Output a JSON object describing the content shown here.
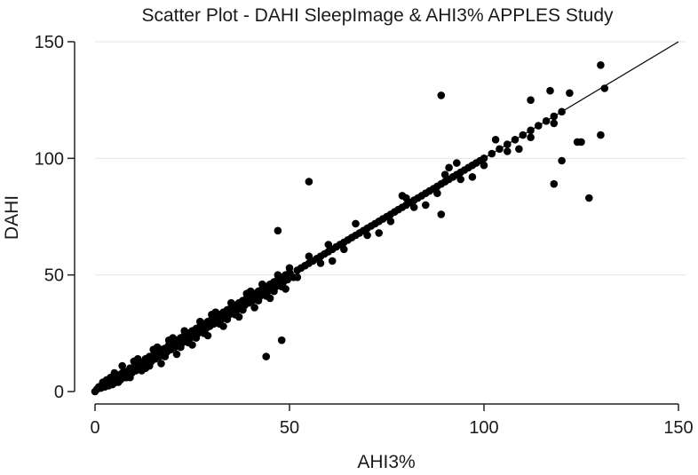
{
  "chart_data": {
    "type": "scatter",
    "title": "Scatter Plot - DAHI SleepImage & AHI3% APPLES Study",
    "xlabel": "AHI3%",
    "ylabel": "DAHI",
    "xlim": [
      0,
      150
    ],
    "ylim": [
      0,
      150
    ],
    "xticks": [
      0,
      50,
      100,
      150
    ],
    "yticks": [
      0,
      50,
      100,
      150
    ],
    "grid": "horizontal",
    "legend": "none",
    "fit_line": {
      "x": [
        0,
        150
      ],
      "y": [
        0,
        150
      ]
    },
    "colors": {
      "points": "#000000",
      "fit_line": "#111111",
      "grid": "#e3e3e3",
      "axis": "#222222",
      "background": "#ffffff"
    },
    "series": [
      {
        "x": [
          0,
          0.5,
          1,
          1.5,
          2,
          2.5,
          3,
          3.5,
          4,
          4.5,
          5,
          5.5,
          6,
          6.5,
          7,
          7.5,
          8,
          8.5,
          9,
          9.5,
          10,
          10.5,
          11,
          11.5,
          12,
          12.5,
          13,
          13.5,
          14,
          14.5,
          15,
          15.5,
          16,
          16.5,
          17,
          17.5,
          18,
          18.5,
          19,
          19.5,
          20,
          20.5,
          21,
          21.5,
          22,
          22.5,
          23,
          23.5,
          24,
          24.5,
          25,
          25.5,
          26,
          26.5,
          27,
          27.5,
          28,
          28.5,
          29,
          29.5,
          30,
          30.5,
          31,
          31.5,
          32,
          32.5,
          33,
          33.5,
          34,
          34.5,
          35,
          35.5,
          36,
          36.5,
          37,
          37.5,
          38,
          38.5,
          39,
          39.5,
          40,
          40.5,
          41,
          41.5,
          42,
          42.5,
          43,
          43.5,
          44,
          44.5,
          45,
          45.5,
          46,
          46.5,
          47,
          47.5,
          48,
          48.5,
          49,
          49.5,
          50,
          51,
          52,
          53,
          54,
          55,
          56,
          57,
          58,
          59,
          60,
          61,
          62,
          63,
          64,
          65,
          66,
          67,
          68,
          69,
          70,
          71,
          72,
          73,
          74,
          75,
          76,
          77,
          78,
          79,
          80,
          81,
          82,
          83,
          84,
          85,
          86,
          87,
          88,
          89,
          90,
          91,
          92,
          93,
          94,
          95,
          96,
          97,
          98,
          99,
          100,
          102,
          104,
          106,
          108,
          110,
          112,
          114,
          116,
          118,
          120,
          3,
          5,
          7,
          9,
          11,
          13,
          15,
          17,
          19,
          21,
          23,
          25,
          27,
          29,
          31,
          33,
          35,
          37,
          39,
          41,
          43,
          45,
          47,
          49,
          55,
          61,
          67,
          73,
          79,
          85,
          91,
          97,
          103,
          109,
          2,
          6,
          8,
          12,
          14,
          18,
          22,
          24,
          26,
          28,
          32,
          34,
          36,
          38,
          42,
          44,
          46,
          48,
          52,
          58,
          64,
          70,
          76,
          82,
          88,
          94,
          100,
          106,
          112,
          118,
          4,
          10,
          16,
          20,
          30,
          40,
          50,
          60,
          80,
          90,
          55,
          48,
          44,
          47,
          89,
          112,
          118,
          122,
          124,
          127,
          130,
          131,
          130,
          117,
          125,
          120,
          89,
          93
        ],
        "y": [
          0,
          1,
          2,
          1.5,
          3,
          2,
          3.5,
          2.5,
          5,
          3,
          5.5,
          4,
          7,
          5,
          8,
          6,
          8.5,
          7,
          10,
          8,
          10.5,
          9,
          12,
          10,
          12.5,
          11,
          14,
          12,
          15,
          13,
          15.5,
          14,
          17,
          15,
          18,
          16,
          18.5,
          17,
          20,
          18,
          21,
          19,
          22,
          20,
          23,
          21,
          24,
          22,
          25,
          23,
          26,
          24,
          27,
          25,
          28,
          26,
          29,
          27,
          30,
          28,
          31,
          29,
          32,
          30,
          33,
          31,
          34,
          32,
          35,
          33,
          36,
          34,
          37,
          35,
          38,
          36,
          39,
          37,
          40,
          38,
          41,
          39,
          42,
          40,
          43,
          41,
          44,
          42,
          45,
          43,
          46,
          44,
          47,
          45,
          48,
          46,
          49,
          47,
          50,
          48,
          51,
          49,
          52,
          53,
          54,
          55,
          56,
          57,
          58,
          59,
          60,
          61,
          62,
          63,
          64,
          65,
          66,
          67,
          68,
          69,
          70,
          71,
          72,
          73,
          74,
          75,
          76,
          77,
          78,
          79,
          80,
          81,
          82,
          83,
          84,
          85,
          86,
          87,
          88,
          89,
          90,
          91,
          92,
          93,
          94,
          95,
          96,
          97,
          98,
          99,
          100,
          102,
          104,
          106,
          108,
          110,
          112,
          114,
          116,
          118,
          120,
          5,
          8,
          11,
          6,
          14,
          10,
          18,
          12,
          22,
          16,
          26,
          20,
          30,
          24,
          34,
          28,
          38,
          32,
          42,
          36,
          46,
          40,
          50,
          44,
          58,
          56,
          72,
          68,
          84,
          80,
          96,
          92,
          108,
          104,
          4,
          4,
          6,
          9,
          11,
          15,
          19,
          21,
          23,
          25,
          29,
          31,
          33,
          35,
          39,
          41,
          43,
          45,
          49,
          55,
          61,
          67,
          73,
          79,
          85,
          91,
          97,
          103,
          109,
          115,
          6,
          13,
          19,
          23,
          33,
          43,
          53,
          63,
          83,
          93,
          90,
          22,
          15,
          69,
          127,
          125,
          89,
          128,
          107,
          83,
          110,
          130,
          140,
          129,
          107,
          99,
          76,
          98
        ]
      }
    ]
  }
}
